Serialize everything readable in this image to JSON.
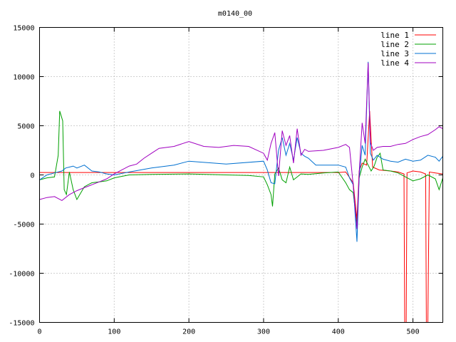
{
  "chart_data": {
    "type": "line",
    "title": "m0140_00",
    "xlim": [
      0,
      540
    ],
    "ylim": [
      -15000,
      15000
    ],
    "xticks": [
      0,
      100,
      200,
      300,
      400,
      500
    ],
    "yticks": [
      -15000,
      -10000,
      -5000,
      0,
      5000,
      10000,
      15000
    ],
    "grid": true,
    "legend_position": "top-right",
    "series": [
      {
        "name": "line 1",
        "color": "#ff0000",
        "x": [
          0,
          100,
          150,
          200,
          250,
          300,
          350,
          400,
          410,
          420,
          425,
          428,
          432,
          438,
          442,
          446,
          455,
          470,
          480,
          488,
          489,
          491,
          492,
          500,
          510,
          517,
          518,
          520,
          522,
          530,
          540
        ],
        "y": [
          250,
          250,
          250,
          250,
          250,
          250,
          250,
          250,
          300,
          -800,
          -4500,
          400,
          1200,
          1000,
          6500,
          800,
          500,
          400,
          300,
          100,
          -15000,
          -15000,
          200,
          400,
          300,
          100,
          -15000,
          -15000,
          300,
          200,
          100
        ]
      },
      {
        "name": "line 2",
        "color": "#00a000",
        "x": [
          0,
          10,
          20,
          25,
          27,
          29,
          31,
          33,
          36,
          40,
          45,
          50,
          60,
          70,
          80,
          90,
          100,
          120,
          150,
          200,
          250,
          280,
          300,
          305,
          310,
          312,
          315,
          320,
          325,
          330,
          335,
          340,
          350,
          360,
          380,
          400,
          410,
          415,
          420,
          425,
          428,
          432,
          436,
          440,
          444,
          448,
          452,
          456,
          460,
          470,
          480,
          490,
          500,
          510,
          520,
          530,
          535,
          540
        ],
        "y": [
          -500,
          -300,
          -200,
          2000,
          6500,
          6000,
          5500,
          -1500,
          -2000,
          300,
          -1500,
          -2500,
          -1200,
          -800,
          -700,
          -600,
          -300,
          0,
          50,
          100,
          0,
          -50,
          -200,
          -1000,
          -2000,
          -3200,
          100,
          700,
          -500,
          -800,
          800,
          -500,
          100,
          50,
          200,
          300,
          -800,
          -1500,
          -1800,
          -5000,
          -300,
          800,
          1600,
          1000,
          400,
          900,
          1800,
          2200,
          500,
          400,
          200,
          -200,
          -600,
          -400,
          0,
          -400,
          -1500,
          -300
        ]
      },
      {
        "name": "line 3",
        "color": "#0070d0",
        "x": [
          0,
          10,
          20,
          30,
          35,
          40,
          45,
          50,
          60,
          70,
          80,
          90,
          100,
          120,
          150,
          180,
          200,
          250,
          300,
          305,
          310,
          315,
          320,
          325,
          330,
          335,
          340,
          345,
          350,
          355,
          360,
          370,
          400,
          410,
          415,
          420,
          425,
          428,
          432,
          436,
          440,
          443,
          447,
          452,
          460,
          470,
          480,
          490,
          500,
          510,
          520,
          530,
          535,
          540
        ],
        "y": [
          -500,
          0,
          200,
          400,
          700,
          800,
          900,
          700,
          1000,
          400,
          300,
          100,
          0,
          300,
          700,
          1000,
          1400,
          1100,
          1400,
          500,
          -800,
          -900,
          2500,
          3800,
          2000,
          3200,
          1500,
          3800,
          2200,
          1900,
          1700,
          1000,
          1000,
          800,
          -300,
          -1000,
          -6800,
          -300,
          3000,
          2000,
          11500,
          2200,
          1500,
          2000,
          1600,
          1400,
          1300,
          1600,
          1400,
          1500,
          2000,
          1800,
          1400,
          1900
        ]
      },
      {
        "name": "line 4",
        "color": "#a000c0",
        "x": [
          0,
          10,
          20,
          30,
          40,
          50,
          60,
          70,
          80,
          90,
          100,
          110,
          120,
          130,
          140,
          150,
          160,
          180,
          200,
          220,
          240,
          260,
          280,
          300,
          305,
          310,
          315,
          320,
          325,
          330,
          335,
          340,
          345,
          350,
          355,
          360,
          380,
          400,
          410,
          415,
          420,
          425,
          428,
          432,
          436,
          440,
          443,
          447,
          452,
          460,
          470,
          480,
          490,
          500,
          510,
          520,
          530,
          535,
          540
        ],
        "y": [
          -2500,
          -2300,
          -2200,
          -2600,
          -2000,
          -1600,
          -1300,
          -1000,
          -700,
          -400,
          100,
          500,
          900,
          1100,
          1700,
          2200,
          2700,
          2900,
          3400,
          2900,
          2800,
          3000,
          2900,
          2200,
          1500,
          3200,
          4300,
          -100,
          4500,
          3000,
          4000,
          1200,
          4700,
          2000,
          2600,
          2400,
          2500,
          2800,
          3100,
          2800,
          -1000,
          -5500,
          200,
          5300,
          3200,
          11400,
          3300,
          2500,
          2800,
          2900,
          2900,
          3100,
          3200,
          3600,
          3900,
          4100,
          4600,
          4900,
          4700
        ]
      }
    ]
  }
}
